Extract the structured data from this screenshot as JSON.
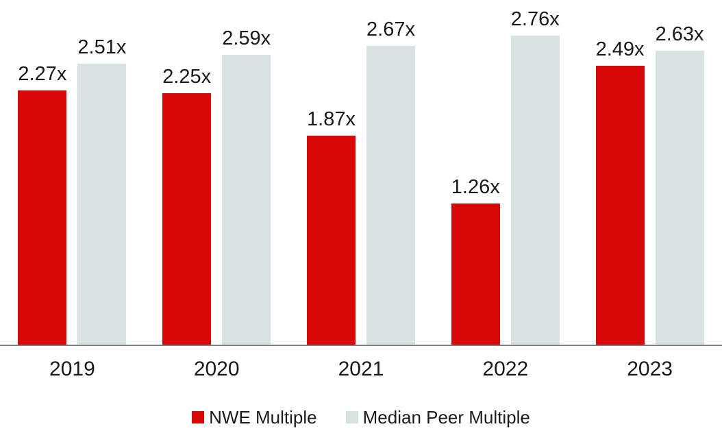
{
  "chart_data": {
    "type": "bar",
    "title": "",
    "xlabel": "",
    "ylabel": "",
    "categories": [
      "2019",
      "2020",
      "2021",
      "2022",
      "2023"
    ],
    "series": [
      {
        "name": "NWE Multiple",
        "color": "#d90808",
        "values": [
          2.27,
          2.25,
          1.87,
          1.26,
          2.49
        ]
      },
      {
        "name": "Median Peer Multiple",
        "color": "#d9e2e3",
        "values": [
          2.51,
          2.59,
          2.67,
          2.76,
          2.63
        ]
      }
    ],
    "data_labels": [
      [
        "2.27x",
        "2.25x",
        "1.87x",
        "1.26x",
        "2.49x"
      ],
      [
        "2.51x",
        "2.59x",
        "2.67x",
        "2.76x",
        "2.63x"
      ]
    ],
    "value_suffix": "x",
    "ylim": [
      0,
      3.08
    ],
    "grid": false,
    "legend_position": "bottom",
    "axis_line_color": "#7f7f7f",
    "text_color": "#1a1a1a",
    "background_color": "#ffffff"
  }
}
